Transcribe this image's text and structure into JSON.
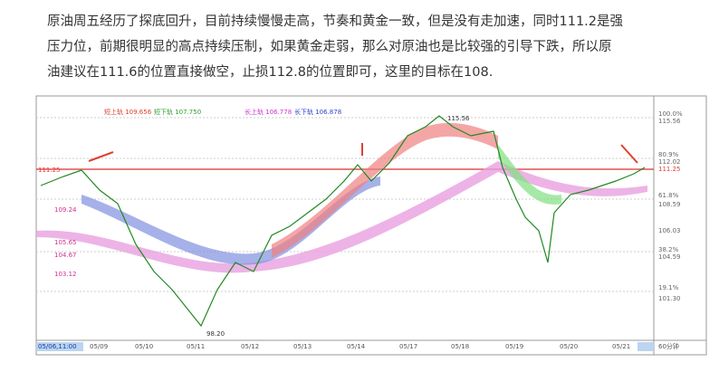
{
  "article": {
    "lines": [
      "原油周五经历了探底回升，目前持续慢慢走高，节奏和黄金一致，但是没有走加速，同时111.2是强",
      "压力位，前期很明显的高点持续压制，如果黄金走弱，那么对原油也是比较强的引导下跌，所以原",
      "油建议在111.6的位置直接做空，止损112.8的位置即可，这里的目标在108."
    ]
  },
  "chart": {
    "legend": [
      "短上轨 109.656",
      "短下轨 107.750",
      "长上轨 106.778",
      "长下轨 106.878"
    ],
    "right_axis": [
      "100.0%",
      "115.56",
      "80.9%",
      "112.02",
      "111.25",
      "61.8%",
      "108.59",
      "106.03",
      "38.2%",
      "104.59",
      "19.1%",
      "101.30"
    ],
    "left_labels": [
      "111.25",
      "109.24",
      "105.65",
      "104.67",
      "103.12"
    ],
    "dates": [
      "05/06,11:00",
      "05/09",
      "05/10",
      "05/11",
      "05/12",
      "05/13",
      "05/14",
      "05/17",
      "05/18",
      "05/19",
      "05/20",
      "05/21"
    ],
    "high_label": "115.56",
    "low_label": "98.20",
    "period": "60分钟"
  }
}
